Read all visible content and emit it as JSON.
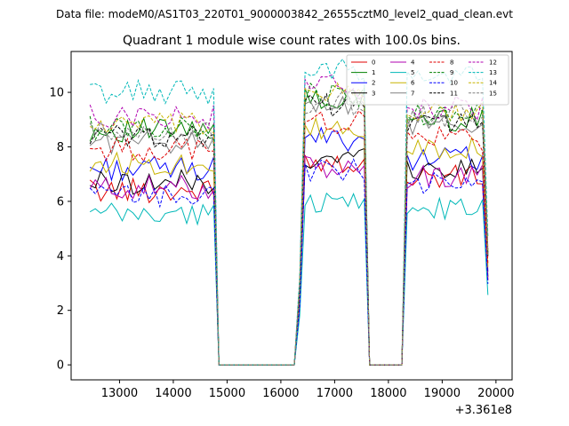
{
  "chart_data": {
    "type": "line",
    "suptitle": "Data file: modeM0/AS1T03_220T01_9000003842_26555cztM0_level2_quad_clean.evt",
    "title": "Quadrant 1 module wise count rates with 100.0s bins.",
    "xlabel": "",
    "ylabel": "",
    "x_offset_label": "+3.361e8",
    "xlim": [
      12100,
      20300
    ],
    "ylim": [
      -0.55,
      11.5
    ],
    "xticks": [
      13000,
      14000,
      15000,
      16000,
      17000,
      18000,
      19000,
      20000
    ],
    "yticks": [
      0,
      2,
      4,
      6,
      8,
      10
    ],
    "xtick_labels": [
      "13000",
      "14000",
      "15000",
      "16000",
      "17000",
      "18000",
      "19000",
      "20000"
    ],
    "ytick_labels": [
      "0",
      "2",
      "4",
      "6",
      "8",
      "10"
    ],
    "segments": [
      {
        "start": 12450,
        "end": 14750,
        "step": 100
      },
      {
        "start": 14850,
        "end": 16250,
        "step": 100,
        "zero": true
      },
      {
        "start": 16350,
        "end": 17550,
        "step": 100
      },
      {
        "start": 17650,
        "end": 18250,
        "step": 100,
        "zero": true
      },
      {
        "start": 18350,
        "end": 19850,
        "step": 100
      }
    ],
    "transitions": [
      {
        "x": 14750,
        "drop_to": 0
      },
      {
        "x": 16250,
        "rise_from": 0
      },
      {
        "x": 17550,
        "drop_to": 0
      },
      {
        "x": 18250,
        "rise_from": 0
      }
    ],
    "series": [
      {
        "name": "0",
        "color": "#e00000",
        "dash": "solid",
        "level_a": 6.4,
        "level_b": 7.5,
        "level_c": 6.9
      },
      {
        "name": "1",
        "color": "#008000",
        "dash": "solid",
        "level_a": 8.6,
        "level_b": 9.7,
        "level_c": 9.0
      },
      {
        "name": "2",
        "color": "#0000ff",
        "dash": "solid",
        "level_a": 7.2,
        "level_b": 8.3,
        "level_c": 7.6
      },
      {
        "name": "3",
        "color": "#000000",
        "dash": "solid",
        "level_a": 6.7,
        "level_b": 7.6,
        "level_c": 7.2
      },
      {
        "name": "4",
        "color": "#b000b0",
        "dash": "solid",
        "level_a": 6.5,
        "level_b": 7.2,
        "level_c": 6.9
      },
      {
        "name": "5",
        "color": "#00b8b8",
        "dash": "solid",
        "level_a": 5.5,
        "level_b": 6.0,
        "level_c": 5.7
      },
      {
        "name": "6",
        "color": "#c8b400",
        "dash": "solid",
        "level_a": 7.4,
        "level_b": 8.6,
        "level_c": 8.0
      },
      {
        "name": "7",
        "color": "#808080",
        "dash": "solid",
        "level_a": 8.2,
        "level_b": 9.4,
        "level_c": 8.8
      },
      {
        "name": "8",
        "color": "#e00000",
        "dash": "dashed",
        "level_a": 7.9,
        "level_b": 8.9,
        "level_c": 8.3
      },
      {
        "name": "9",
        "color": "#008000",
        "dash": "dashed",
        "level_a": 8.7,
        "level_b": 9.9,
        "level_c": 9.2
      },
      {
        "name": "10",
        "color": "#0000ff",
        "dash": "dashed",
        "level_a": 6.2,
        "level_b": 7.1,
        "level_c": 6.6
      },
      {
        "name": "11",
        "color": "#000000",
        "dash": "dashed",
        "level_a": 8.4,
        "level_b": 9.5,
        "level_c": 8.9
      },
      {
        "name": "12",
        "color": "#b000b0",
        "dash": "dashed",
        "level_a": 9.1,
        "level_b": 10.2,
        "level_c": 9.4
      },
      {
        "name": "13",
        "color": "#00b8b8",
        "dash": "dashed",
        "level_a": 10.0,
        "level_b": 10.8,
        "level_c": 10.5
      },
      {
        "name": "14",
        "color": "#c8b400",
        "dash": "dashed",
        "level_a": 8.8,
        "level_b": 9.9,
        "level_c": 9.3
      },
      {
        "name": "15",
        "color": "#808080",
        "dash": "dashed",
        "level_a": 8.5,
        "level_b": 9.6,
        "level_c": 9.1
      }
    ],
    "legend": {
      "location": "upper-right",
      "columns": 4
    }
  }
}
